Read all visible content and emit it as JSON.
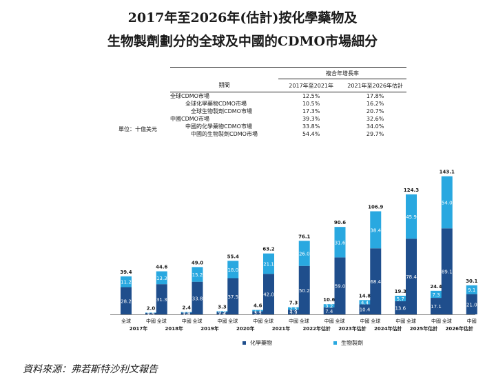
{
  "title_line1": "2017年至2026年(估計)按化學藥物及",
  "title_line2": "生物製劑劃分的全球及中國的CDMO市場細分",
  "unit_label": "單位：十億美元",
  "table": {
    "header_group": "複合年增長率",
    "header_period": "期間",
    "header_col1": "2017年至2021年",
    "header_col2": "2021年至2026年估計",
    "rows": [
      {
        "label": "全球CDMO市場",
        "v1": "12.5%",
        "v2": "17.8%",
        "bold": true,
        "indent": 0
      },
      {
        "label": "全球化學藥物CDMO市場",
        "v1": "10.5%",
        "v2": "16.2%",
        "bold": false,
        "indent": 1
      },
      {
        "label": "全球生物製劑CDMO市場",
        "v1": "17.3%",
        "v2": "20.7%",
        "bold": false,
        "indent": 2
      },
      {
        "label": "中國CDMO市場",
        "v1": "39.3%",
        "v2": "32.6%",
        "bold": true,
        "indent": 0
      },
      {
        "label": "中國的化學藥物CDMO市場",
        "v1": "33.8%",
        "v2": "34.0%",
        "bold": false,
        "indent": 1
      },
      {
        "label": "中國的生物製劑CDMO市場",
        "v1": "54.4%",
        "v2": "29.7%",
        "bold": false,
        "indent": 2
      }
    ]
  },
  "chart_data": {
    "type": "bar",
    "stacked": true,
    "categories": [
      "2017年",
      "2018年",
      "2019年",
      "2020年",
      "2021年",
      "2022年估計",
      "2023年估計",
      "2024年估計",
      "2025年估計",
      "2026年估計"
    ],
    "group_labels": [
      "全球",
      "中國"
    ],
    "series": [
      {
        "name": "化學藥物",
        "color": "#1f4e8c",
        "global": [
          28.2,
          31.3,
          33.8,
          37.5,
          42.0,
          50.2,
          59.0,
          68.4,
          78.4,
          89.1
        ],
        "china": [
          1.5,
          1.8,
          2.4,
          3.3,
          4.9,
          7.4,
          10.4,
          13.6,
          17.1,
          21.0
        ]
      },
      {
        "name": "生物製劑",
        "color": "#29a8e0",
        "global": [
          11.2,
          13.3,
          15.2,
          18.0,
          21.1,
          26.0,
          31.6,
          38.4,
          45.9,
          54.0
        ],
        "china": [
          0.4,
          0.6,
          0.9,
          1.3,
          2.5,
          3.2,
          4.4,
          5.7,
          7.3,
          9.1
        ]
      }
    ],
    "totals_global": [
      "39.4",
      "44.6",
      "49.0",
      "55.4",
      "63.2",
      "76.1",
      "90.6",
      "106.9",
      "124.3",
      "143.1"
    ],
    "totals_china": [
      "2.0",
      "2.4",
      "3.3",
      "4.6",
      "7.3",
      "10.6",
      "14.8",
      "19.3",
      "24.4",
      "30.1"
    ],
    "legend": "bottom"
  },
  "source": "資料來源：弗若斯特沙利文報告"
}
